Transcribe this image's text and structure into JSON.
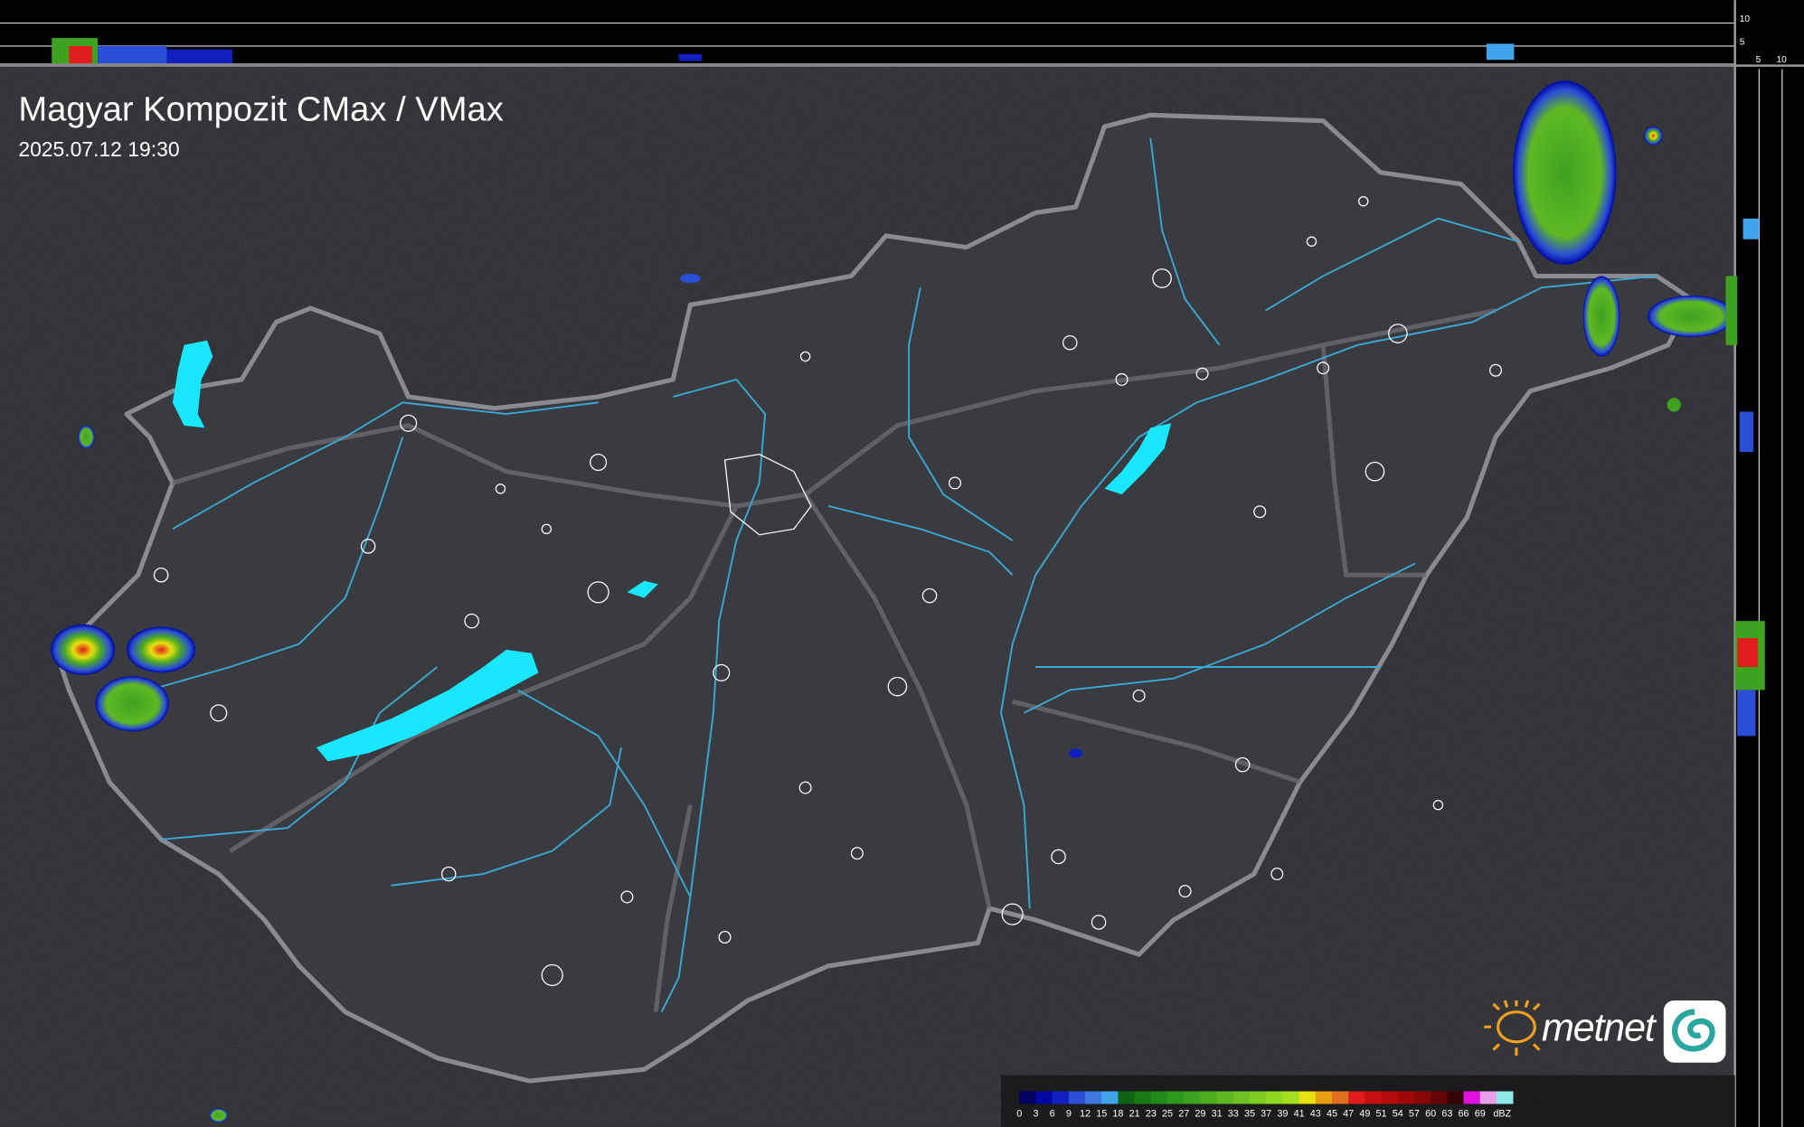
{
  "map": {
    "title": "Magyar Kompozit CMax / VMax",
    "timestamp": "2025.07.12 19:30",
    "top_profile_ticks": [
      "10",
      "5"
    ],
    "side_profile_ticks": [
      "5",
      "10"
    ],
    "logo_text": "metnet",
    "colors": {
      "background": "#2a2b2e",
      "country_fill": "#3a3b40",
      "border": "#8a8b90",
      "rivers": "#3aa8d0",
      "lakes": "#19e6ff",
      "settlements": "#ffffff"
    }
  },
  "legend": {
    "unit": "dBZ",
    "labels": [
      "0",
      "3",
      "6",
      "9",
      "12",
      "15",
      "18",
      "21",
      "23",
      "25",
      "27",
      "29",
      "31",
      "33",
      "35",
      "37",
      "39",
      "41",
      "43",
      "45",
      "47",
      "49",
      "51",
      "54",
      "57",
      "60",
      "63",
      "66",
      "69"
    ],
    "colors": [
      "#00005e",
      "#0008a0",
      "#1020c0",
      "#2a4ed6",
      "#3c78e0",
      "#40a4ea",
      "#0f6414",
      "#187a12",
      "#228a18",
      "#2e981c",
      "#3ea220",
      "#4eac20",
      "#5eb822",
      "#6ec222",
      "#80cc22",
      "#92d822",
      "#a4e020",
      "#e8e010",
      "#e8a010",
      "#e07020",
      "#e01c1c",
      "#c81010",
      "#b40c0c",
      "#a00808",
      "#880808",
      "#640606",
      "#340404",
      "#e010e0",
      "#e8a0e8",
      "#90e8e8"
    ]
  }
}
